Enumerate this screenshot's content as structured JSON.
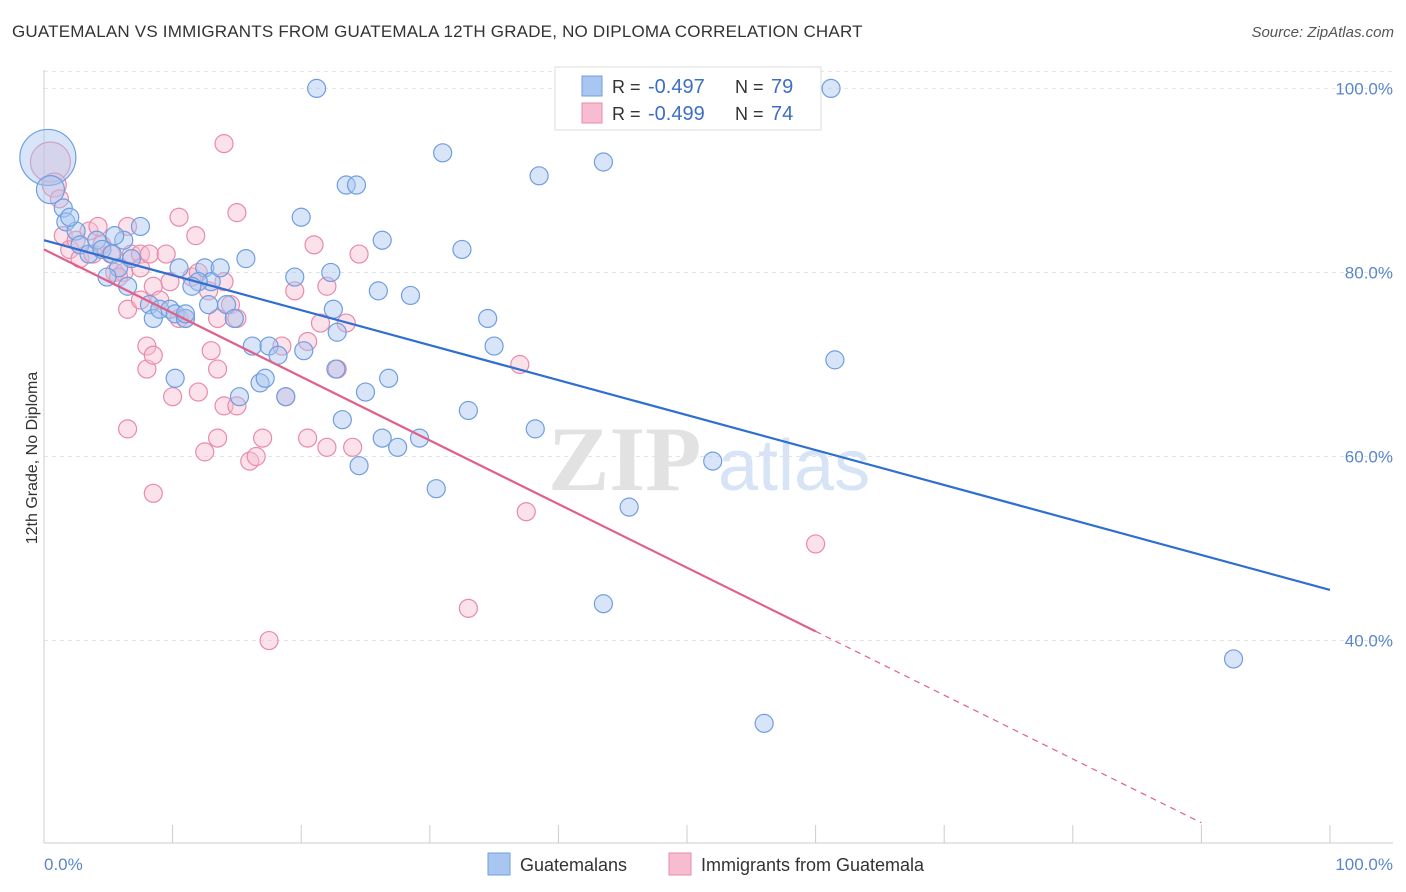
{
  "title": "GUATEMALAN VS IMMIGRANTS FROM GUATEMALA 12TH GRADE, NO DIPLOMA CORRELATION CHART",
  "source": "Source: ZipAtlas.com",
  "watermark": {
    "zip": "ZIP",
    "atlas": "atlas"
  },
  "chart_data": {
    "type": "scatter",
    "xlabel": "",
    "ylabel": "12th Grade, No Diploma",
    "xlim": [
      0,
      100
    ],
    "ylim": [
      18,
      102
    ],
    "x_tick_labels": [
      "0.0%",
      "100.0%"
    ],
    "y_ticks": [
      40,
      60,
      80,
      100
    ],
    "y_tick_labels": [
      "40.0%",
      "60.0%",
      "80.0%",
      "100.0%"
    ],
    "grid": true,
    "legend_top": {
      "rows": [
        {
          "r_label": "R =",
          "r_value": "-0.497",
          "n_label": "N =",
          "n_value": "79"
        },
        {
          "r_label": "R =",
          "r_value": "-0.499",
          "n_label": "N =",
          "n_value": "74"
        }
      ]
    },
    "legend_bottom": [
      "Guatemalans",
      "Immigrants from Guatemala"
    ],
    "colors": {
      "blue_fill": "#a8c6f0",
      "blue_stroke": "#6f9ee0",
      "blue_line": "#2f6fcf",
      "pink_fill": "#f7bcd0",
      "pink_stroke": "#e98aaa",
      "pink_line": "#e0608a",
      "grid": "#e3e3e3",
      "tick_label": "#5a86cc"
    },
    "series": [
      {
        "name": "Guatemalans",
        "trend": {
          "x0": 0,
          "y0": 83.5,
          "x1": 100,
          "y1": 45.5
        },
        "points": [
          [
            0.3,
            92.5,
            28
          ],
          [
            0.5,
            89,
            14
          ],
          [
            1.5,
            87,
            9
          ],
          [
            1.7,
            85.5,
            9
          ],
          [
            2.5,
            84.5,
            9
          ],
          [
            2.8,
            83,
            9
          ],
          [
            3.5,
            82,
            9
          ],
          [
            4.1,
            83.5,
            9
          ],
          [
            4.5,
            82.5,
            9
          ],
          [
            5.3,
            82,
            9
          ],
          [
            6.2,
            83.5,
            9
          ],
          [
            7.5,
            85,
            9
          ],
          [
            6.5,
            78.5,
            9
          ],
          [
            5.8,
            80.5,
            9
          ],
          [
            6.8,
            81.5,
            9
          ],
          [
            8.2,
            76.5,
            9
          ],
          [
            8.5,
            75,
            9
          ],
          [
            9,
            76,
            9
          ],
          [
            9.8,
            76,
            9
          ],
          [
            10.2,
            75.5,
            9
          ],
          [
            11,
            75,
            9
          ],
          [
            12.5,
            80.5,
            9
          ],
          [
            13,
            79,
            9
          ],
          [
            12,
            79,
            9
          ],
          [
            12.8,
            76.5,
            9
          ],
          [
            14.2,
            76.5,
            9
          ],
          [
            14.8,
            75,
            9
          ],
          [
            15.7,
            81.5,
            9
          ],
          [
            13.7,
            80.5,
            9
          ],
          [
            10.5,
            80.5,
            9
          ],
          [
            10.2,
            68.5,
            9
          ],
          [
            11,
            75.5,
            9
          ],
          [
            11.5,
            78.5,
            9
          ],
          [
            16.2,
            72,
            9
          ],
          [
            17.5,
            72,
            9
          ],
          [
            16.8,
            68,
            9
          ],
          [
            17.2,
            68.5,
            9
          ],
          [
            15.2,
            66.5,
            9
          ],
          [
            18.8,
            66.5,
            9
          ],
          [
            18.2,
            71,
            9
          ],
          [
            19.5,
            79.5,
            9
          ],
          [
            20,
            86,
            9
          ],
          [
            20.2,
            71.5,
            9
          ],
          [
            21.2,
            100,
            9
          ],
          [
            22.5,
            76,
            9
          ],
          [
            22.8,
            73.5,
            9
          ],
          [
            22.7,
            69.5,
            9
          ],
          [
            22.3,
            80,
            9
          ],
          [
            23.2,
            64,
            9
          ],
          [
            23.5,
            89.5,
            9
          ],
          [
            24.3,
            89.5,
            9
          ],
          [
            24.5,
            59,
            9
          ],
          [
            25,
            67,
            9
          ],
          [
            26.3,
            62,
            9
          ],
          [
            26,
            78,
            9
          ],
          [
            26.3,
            83.5,
            9
          ],
          [
            26.8,
            68.5,
            9
          ],
          [
            28.5,
            77.5,
            9
          ],
          [
            27.5,
            61,
            9
          ],
          [
            29.2,
            62,
            9
          ],
          [
            30.5,
            56.5,
            9
          ],
          [
            31,
            93,
            9
          ],
          [
            32.5,
            82.5,
            9
          ],
          [
            33,
            65,
            9
          ],
          [
            34.5,
            75,
            9
          ],
          [
            35,
            72,
            9
          ],
          [
            38.2,
            63,
            9
          ],
          [
            38.5,
            90.5,
            9
          ],
          [
            43.5,
            92,
            9
          ],
          [
            43.5,
            44,
            9
          ],
          [
            45.5,
            54.5,
            9
          ],
          [
            52,
            59.5,
            9
          ],
          [
            56,
            31,
            9
          ],
          [
            61.2,
            100,
            9
          ],
          [
            61.5,
            70.5,
            9
          ],
          [
            92.5,
            38,
            9
          ],
          [
            5.5,
            84,
            9
          ],
          [
            2,
            86,
            9
          ],
          [
            4.9,
            79.5,
            9
          ]
        ]
      },
      {
        "name": "Immigrants from Guatemala",
        "trend": {
          "x0": 0,
          "y0": 82.5,
          "x1": 60,
          "y1": 41
        },
        "dash": {
          "x0": 60,
          "y0": 41,
          "x1": 90,
          "y1": 20.2
        },
        "points": [
          [
            0.5,
            92,
            20
          ],
          [
            0.8,
            89.5,
            12
          ],
          [
            1.2,
            88,
            9
          ],
          [
            1.5,
            84,
            9
          ],
          [
            2,
            82.5,
            9
          ],
          [
            2.5,
            83.5,
            9
          ],
          [
            2.8,
            81.5,
            9
          ],
          [
            3.5,
            84.5,
            9
          ],
          [
            3.8,
            82,
            9
          ],
          [
            4.2,
            85,
            9
          ],
          [
            4.5,
            83,
            9
          ],
          [
            5.2,
            82,
            9
          ],
          [
            5.5,
            80,
            9
          ],
          [
            6.5,
            85,
            9
          ],
          [
            6.8,
            82,
            9
          ],
          [
            7.5,
            82,
            9
          ],
          [
            7.5,
            80.5,
            9
          ],
          [
            8.2,
            82,
            9
          ],
          [
            8.5,
            78.5,
            9
          ],
          [
            9,
            77,
            9
          ],
          [
            9.5,
            82,
            9
          ],
          [
            9.8,
            79,
            9
          ],
          [
            10.5,
            75,
            9
          ],
          [
            11,
            75,
            9
          ],
          [
            11.5,
            79.5,
            9
          ],
          [
            12,
            80,
            9
          ],
          [
            12.8,
            78,
            9
          ],
          [
            13.5,
            75,
            9
          ],
          [
            14,
            79,
            9
          ],
          [
            14.5,
            76.5,
            9
          ],
          [
            15,
            75,
            9
          ],
          [
            15,
            86.5,
            9
          ],
          [
            10.5,
            86,
            9
          ],
          [
            11.8,
            84,
            9
          ],
          [
            14,
            94,
            9
          ],
          [
            6.2,
            80,
            9
          ],
          [
            5.8,
            79.5,
            9
          ],
          [
            6.5,
            76,
            9
          ],
          [
            7.5,
            77,
            9
          ],
          [
            8,
            72,
            9
          ],
          [
            8,
            69.5,
            9
          ],
          [
            8.5,
            71,
            9
          ],
          [
            10,
            66.5,
            9
          ],
          [
            12,
            67,
            9
          ],
          [
            13,
            71.5,
            9
          ],
          [
            13.5,
            69.5,
            9
          ],
          [
            12.5,
            60.5,
            9
          ],
          [
            13.5,
            62,
            9
          ],
          [
            14,
            65.5,
            9
          ],
          [
            15,
            65.5,
            9
          ],
          [
            16,
            59.5,
            9
          ],
          [
            16.5,
            60,
            9
          ],
          [
            17,
            62,
            9
          ],
          [
            18.5,
            72,
            9
          ],
          [
            18.8,
            66.5,
            9
          ],
          [
            19.5,
            78,
            9
          ],
          [
            20.5,
            72.5,
            9
          ],
          [
            20.5,
            62,
            9
          ],
          [
            21,
            83,
            9
          ],
          [
            21.5,
            74.5,
            9
          ],
          [
            22,
            78.5,
            9
          ],
          [
            23.5,
            74.5,
            9
          ],
          [
            22,
            61,
            9
          ],
          [
            22.8,
            69.5,
            9
          ],
          [
            24,
            61,
            9
          ],
          [
            24.5,
            82,
            9
          ],
          [
            8.5,
            56,
            9
          ],
          [
            6.5,
            63,
            9
          ],
          [
            33,
            43.5,
            9
          ],
          [
            37,
            70,
            9
          ],
          [
            37.5,
            54,
            9
          ],
          [
            50,
            97,
            9
          ],
          [
            60,
            50.5,
            9
          ],
          [
            17.5,
            40,
            9
          ]
        ]
      }
    ]
  }
}
